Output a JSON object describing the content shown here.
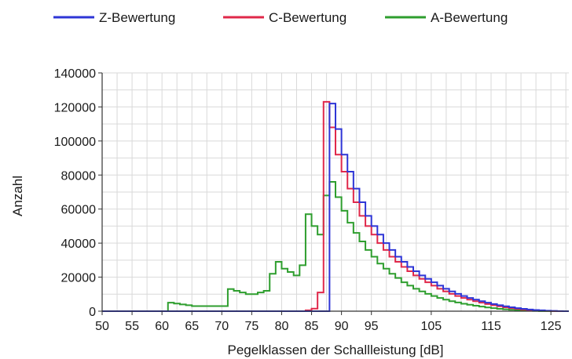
{
  "chart_data": {
    "type": "line",
    "step": true,
    "title": "",
    "xlabel": "Pegelklassen der Schallleistung [dB]",
    "ylabel": "Anzahl",
    "xlim": [
      50,
      128
    ],
    "ylim": [
      0,
      140000
    ],
    "grid": true,
    "legend_position": "top",
    "x_ticks": [
      "50",
      "55",
      "60",
      "65",
      "70",
      "75",
      "80",
      "85",
      "90",
      "95",
      "105",
      "115",
      "125"
    ],
    "x_tick_values": [
      50,
      55,
      60,
      65,
      70,
      75,
      80,
      85,
      90,
      95,
      105,
      115,
      125
    ],
    "y_ticks": [
      "0",
      "20000",
      "40000",
      "60000",
      "80000",
      "100000",
      "120000",
      "140000"
    ],
    "y_tick_values": [
      0,
      20000,
      40000,
      60000,
      80000,
      100000,
      120000,
      140000
    ],
    "colors": {
      "grid": "#d9d9d9",
      "axis": "#333333"
    },
    "series": [
      {
        "name": "Z-Bewertung",
        "color": "#2e35d6",
        "x": [
          50,
          85,
          86,
          87,
          88,
          89,
          90,
          91,
          92,
          93,
          94,
          95,
          96,
          97,
          98,
          99,
          100,
          101,
          102,
          103,
          104,
          105,
          106,
          107,
          108,
          109,
          110,
          111,
          112,
          113,
          114,
          115,
          116,
          117,
          118,
          119,
          120,
          121,
          122,
          123,
          124,
          125,
          126,
          127,
          128
        ],
        "y": [
          0,
          0,
          0,
          0,
          122000,
          107000,
          92000,
          82000,
          72000,
          64000,
          56000,
          50000,
          45000,
          40000,
          36000,
          32000,
          29000,
          26000,
          23500,
          21000,
          19000,
          17000,
          15000,
          13200,
          11600,
          10200,
          8900,
          7800,
          6800,
          5900,
          5000,
          4200,
          3500,
          2900,
          2300,
          1800,
          1400,
          1000,
          700,
          500,
          300,
          150,
          80,
          0,
          0
        ]
      },
      {
        "name": "C-Bewertung",
        "color": "#e0284a",
        "x": [
          50,
          84,
          85,
          86,
          87,
          88,
          89,
          90,
          91,
          92,
          93,
          94,
          95,
          96,
          97,
          98,
          99,
          100,
          101,
          102,
          103,
          104,
          105,
          106,
          107,
          108,
          109,
          110,
          111,
          112,
          113,
          114,
          115,
          116,
          117,
          118,
          119,
          120,
          121,
          122,
          123,
          124,
          125,
          126,
          127,
          128
        ],
        "y": [
          0,
          500,
          1500,
          11000,
          123000,
          108000,
          92000,
          82000,
          72000,
          64000,
          56000,
          50000,
          45000,
          40000,
          36000,
          32000,
          29000,
          26000,
          23500,
          21000,
          19000,
          17000,
          15000,
          13200,
          11600,
          10200,
          8900,
          7800,
          6800,
          5900,
          5000,
          4200,
          3500,
          2900,
          2300,
          1800,
          1400,
          1000,
          700,
          500,
          300,
          150,
          80,
          0,
          0,
          0
        ]
      },
      {
        "name": "A-Bewertung",
        "color": "#2e9e2e",
        "x": [
          50,
          61,
          62,
          63,
          64,
          65,
          66,
          67,
          68,
          69,
          70,
          71,
          72,
          73,
          74,
          75,
          76,
          77,
          78,
          79,
          80,
          81,
          82,
          83,
          84,
          85,
          86,
          87,
          88,
          89,
          90,
          91,
          92,
          93,
          94,
          95,
          96,
          97,
          98,
          99,
          100,
          101,
          102,
          103,
          104,
          105,
          106,
          107,
          108,
          109,
          110,
          111,
          112,
          113,
          114,
          115,
          116,
          117,
          118,
          119,
          120,
          121,
          122,
          123,
          124,
          125,
          126,
          127,
          128
        ],
        "y": [
          0,
          5000,
          4500,
          4000,
          3500,
          3000,
          3000,
          3000,
          3000,
          3000,
          3000,
          13000,
          12000,
          11000,
          10000,
          10000,
          11000,
          12000,
          22000,
          29000,
          25000,
          23000,
          21000,
          27000,
          57000,
          50000,
          45000,
          68000,
          76000,
          67000,
          59000,
          52000,
          46000,
          41000,
          36000,
          32000,
          28000,
          25000,
          22000,
          19500,
          17000,
          15000,
          13200,
          11600,
          10200,
          8900,
          7800,
          6800,
          5900,
          5100,
          4400,
          3800,
          3200,
          2700,
          2200,
          1800,
          1400,
          1100,
          800,
          600,
          400,
          250,
          150,
          80,
          40,
          20,
          0,
          0,
          0
        ]
      }
    ]
  }
}
